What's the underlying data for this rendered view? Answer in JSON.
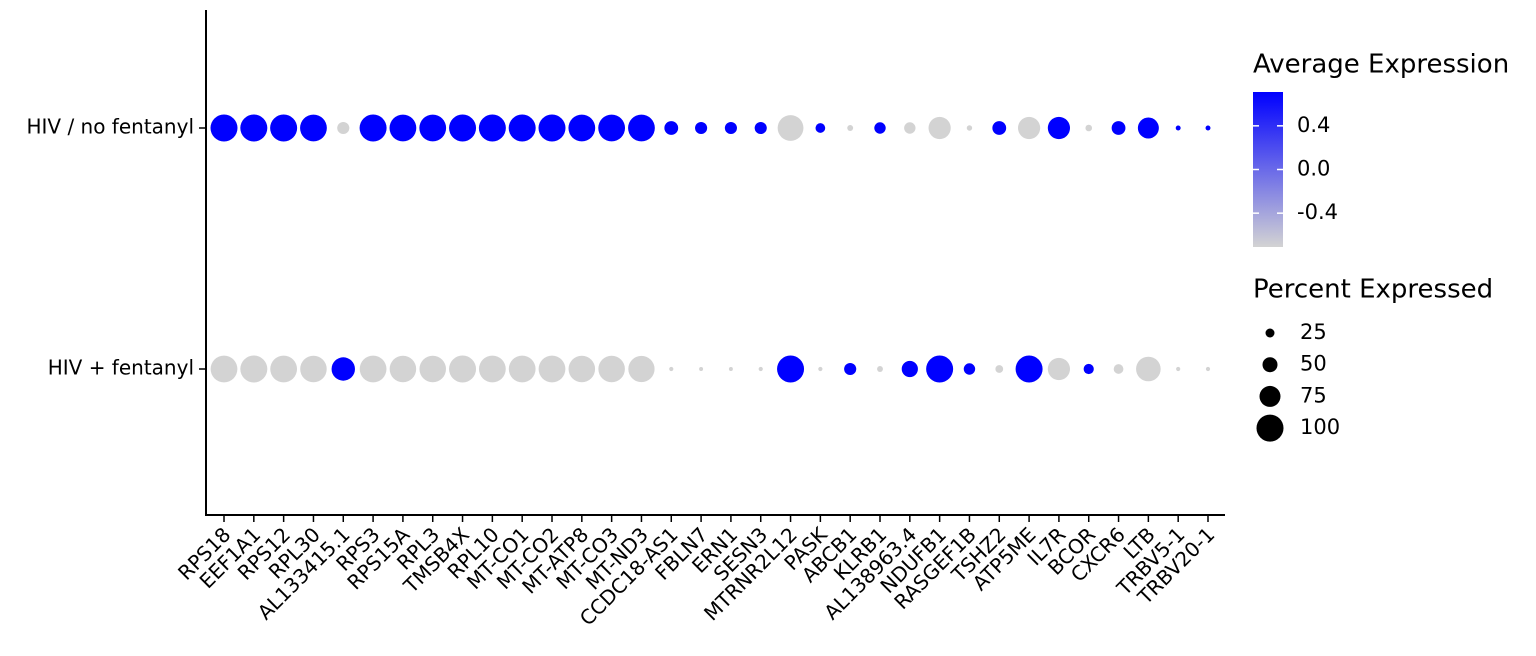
{
  "chart_data": {
    "type": "dotplot",
    "categories": [
      "RPS18",
      "EEF1A1",
      "RPS12",
      "RPL30",
      "AL133415.1",
      "RPS3",
      "RPS15A",
      "RPL3",
      "TMSB4X",
      "RPL10",
      "MT-CO1",
      "MT-CO2",
      "MT-ATP8",
      "MT-CO3",
      "MT-ND3",
      "CCDC18-AS1",
      "FBLN7",
      "ERN1",
      "SESN3",
      "MTRNR2L12",
      "PASK",
      "ABCB1",
      "KLRB1",
      "AL138963.4",
      "NDUFB1",
      "RASGEF1B",
      "TSHZ2",
      "ATP5ME",
      "IL7R",
      "BCOR",
      "CXCR6",
      "LTB",
      "TRBV5-1",
      "TRBV20-1"
    ],
    "series": [
      {
        "name": "HIV / no fentanyl",
        "avg_expression": [
          0.71,
          0.71,
          0.71,
          0.71,
          -0.71,
          0.71,
          0.71,
          0.71,
          0.71,
          0.71,
          0.71,
          0.71,
          0.71,
          0.71,
          0.71,
          0.71,
          0.71,
          0.71,
          0.71,
          -0.71,
          0.71,
          -0.71,
          0.71,
          -0.71,
          -0.71,
          -0.71,
          0.71,
          -0.71,
          0.71,
          -0.71,
          0.71,
          0.71,
          0.71,
          0.71
        ],
        "pct_expressed": [
          100,
          100,
          100,
          99,
          38,
          100,
          99,
          99,
          100,
          100,
          100,
          100,
          99,
          99,
          99,
          45,
          38,
          38,
          38,
          95,
          28,
          12,
          35,
          35,
          80,
          10,
          45,
          80,
          80,
          15,
          45,
          75,
          8,
          8
        ]
      },
      {
        "name": "HIV + fentanyl",
        "avg_expression": [
          -0.71,
          -0.71,
          -0.71,
          -0.71,
          0.71,
          -0.71,
          -0.71,
          -0.71,
          -0.71,
          -0.71,
          -0.71,
          -0.71,
          -0.71,
          -0.71,
          -0.71,
          -0.71,
          -0.71,
          -0.71,
          -0.71,
          0.71,
          -0.71,
          0.71,
          -0.71,
          0.71,
          0.71,
          0.71,
          -0.71,
          0.71,
          -0.71,
          0.71,
          -0.71,
          -0.71,
          -0.71,
          -0.71
        ],
        "pct_expressed": [
          99,
          100,
          99,
          98,
          85,
          99,
          98,
          98,
          100,
          99,
          99,
          99,
          98,
          98,
          97,
          5,
          4,
          4,
          5,
          100,
          5,
          38,
          12,
          55,
          100,
          35,
          20,
          100,
          80,
          30,
          28,
          90,
          5,
          5
        ]
      }
    ],
    "color_legend_title": "Average Expression",
    "color_lim": [
      -0.71,
      0.71
    ],
    "color_ticks": [
      0.4,
      {
        "value": 0,
        "label": "0.0"
      },
      -0.4
    ],
    "color_low": "#d3d3d3",
    "color_high": "#0000ff",
    "size_legend_title": "Percent Expressed",
    "size_ticks": [
      25,
      50,
      75,
      100
    ],
    "size_color": "#000000"
  }
}
